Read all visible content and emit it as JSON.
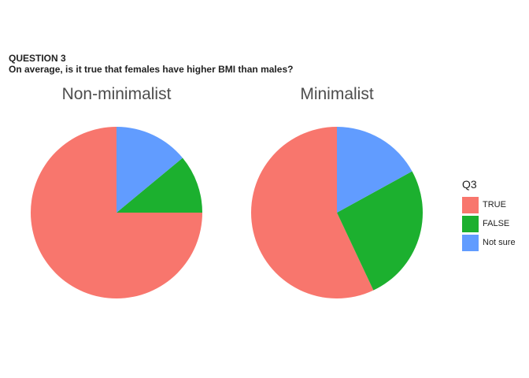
{
  "header": {
    "question_number": "QUESTION 3",
    "question_text": "On average, is it true that females have higher BMI than males?"
  },
  "colors": {
    "TRUE": "#F8766D",
    "FALSE": "#1CB02F",
    "Not sure": "#619CFF"
  },
  "chart_data": [
    {
      "type": "pie",
      "title": "Non-minimalist",
      "categories": [
        "TRUE",
        "FALSE",
        "Not sure"
      ],
      "values": [
        75,
        11,
        14
      ]
    },
    {
      "type": "pie",
      "title": "Minimalist",
      "categories": [
        "TRUE",
        "FALSE",
        "Not sure"
      ],
      "values": [
        57,
        26,
        17
      ]
    }
  ],
  "legend": {
    "title": "Q3",
    "items": [
      "TRUE",
      "FALSE",
      "Not sure"
    ]
  }
}
